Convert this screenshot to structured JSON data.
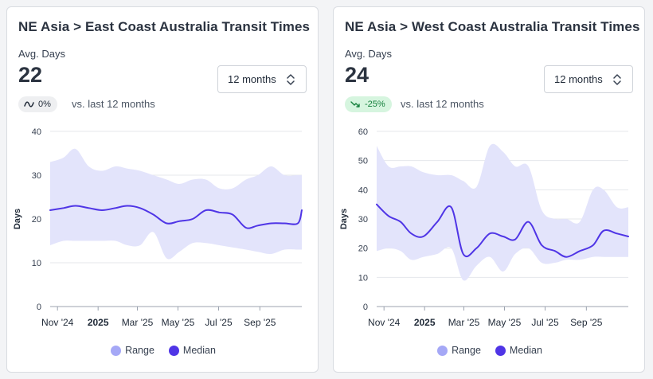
{
  "colors": {
    "range": "#a5a8f6",
    "range_fill": "#e3e4fb",
    "median": "#4f35e6",
    "grid": "#e5e7eb",
    "axis": "#9ca3af"
  },
  "panels": [
    {
      "title": "NE Asia > East Coast Australia Transit Times",
      "metric_label": "Avg. Days",
      "metric_value": "22",
      "period_select": "12 months",
      "change": {
        "value": "0%",
        "icon": "flat-wave-icon",
        "tone": "neutral"
      },
      "vs_text": "vs. last 12 months",
      "legend": {
        "range": "Range",
        "median": "Median"
      }
    },
    {
      "title": "NE Asia > West Coast Australia Transit Times",
      "metric_label": "Avg. Days",
      "metric_value": "24",
      "period_select": "12 months",
      "change": {
        "value": "-25%",
        "icon": "trend-down-icon",
        "tone": "down"
      },
      "vs_text": "vs. last 12 months",
      "legend": {
        "range": "Range",
        "median": "Median"
      }
    }
  ],
  "chart_data": [
    {
      "type": "area",
      "title": "NE Asia > East Coast Australia Transit Times",
      "ylabel": "Days",
      "ylim": [
        0,
        40
      ],
      "yticks": [
        0,
        10,
        20,
        30,
        40
      ],
      "xlim": [
        "2024-10-21",
        "2025-11-03"
      ],
      "xticks": [
        {
          "date": "2024-11-01",
          "label": "Nov '24"
        },
        {
          "date": "2025-01-01",
          "label": "2025",
          "bold": true
        },
        {
          "date": "2025-03-01",
          "label": "Mar '25"
        },
        {
          "date": "2025-05-01",
          "label": "May '25"
        },
        {
          "date": "2025-07-01",
          "label": "Jul '25"
        },
        {
          "date": "2025-09-01",
          "label": "Sep '25"
        }
      ],
      "grid": true,
      "legend_position": "bottom-center",
      "dates": [
        "2024-10-21",
        "2024-11-10",
        "2024-11-28",
        "2024-12-18",
        "2025-01-07",
        "2025-01-27",
        "2025-02-14",
        "2025-03-05",
        "2025-03-25",
        "2025-04-14",
        "2025-05-03",
        "2025-05-23",
        "2025-06-12",
        "2025-07-02",
        "2025-07-22",
        "2025-08-11",
        "2025-08-29",
        "2025-09-18",
        "2025-10-08",
        "2025-10-28",
        "2025-11-03"
      ],
      "series": [
        {
          "name": "Median",
          "values": [
            22,
            22.5,
            23,
            22.5,
            22,
            22.5,
            23,
            22.5,
            21,
            19,
            19.5,
            20,
            22,
            21.5,
            21,
            18,
            18.5,
            19,
            19,
            19,
            22
          ]
        },
        {
          "name": "Range",
          "upper": [
            33,
            34,
            36,
            32,
            31,
            32,
            31.5,
            31,
            30,
            29,
            28,
            29,
            29,
            27,
            27,
            29,
            30,
            32,
            30,
            30,
            30
          ],
          "lower": [
            14,
            15,
            15,
            15,
            15,
            15,
            14,
            14,
            17,
            11,
            12.5,
            14.5,
            14.5,
            14,
            13.5,
            13,
            12.5,
            12,
            13,
            13,
            13
          ]
        }
      ]
    },
    {
      "type": "area",
      "title": "NE Asia > West Coast Australia Transit Times",
      "ylabel": "Days",
      "ylim": [
        0,
        60
      ],
      "yticks": [
        0,
        10,
        20,
        30,
        40,
        50,
        60
      ],
      "xlim": [
        "2024-10-21",
        "2025-11-03"
      ],
      "xticks": [
        {
          "date": "2024-11-01",
          "label": "Nov '24"
        },
        {
          "date": "2025-01-01",
          "label": "2025",
          "bold": true
        },
        {
          "date": "2025-03-01",
          "label": "Mar '25"
        },
        {
          "date": "2025-05-01",
          "label": "May '25"
        },
        {
          "date": "2025-07-01",
          "label": "Jul '25"
        },
        {
          "date": "2025-09-01",
          "label": "Sep '25"
        }
      ],
      "grid": true,
      "legend_position": "bottom-center",
      "dates": [
        "2024-10-21",
        "2024-11-08",
        "2024-11-26",
        "2024-12-12",
        "2024-12-30",
        "2025-01-20",
        "2025-02-10",
        "2025-02-28",
        "2025-03-20",
        "2025-04-09",
        "2025-04-29",
        "2025-05-17",
        "2025-06-06",
        "2025-06-26",
        "2025-07-16",
        "2025-08-02",
        "2025-08-22",
        "2025-09-11",
        "2025-09-27",
        "2025-10-17",
        "2025-11-03"
      ],
      "series": [
        {
          "name": "Median",
          "values": [
            35,
            31,
            29,
            25,
            24,
            29,
            34,
            18,
            20,
            25,
            24,
            23,
            29,
            21,
            19,
            17,
            19,
            21,
            26,
            25,
            24
          ]
        },
        {
          "name": "Range",
          "upper": [
            55,
            48,
            48,
            48,
            46,
            45,
            45,
            43,
            41,
            55,
            53,
            48,
            48,
            33,
            30,
            30,
            29,
            40,
            40,
            34,
            34
          ],
          "lower": [
            19,
            20,
            19,
            16,
            17,
            18,
            20,
            9,
            14,
            17,
            12,
            18,
            20,
            15,
            15,
            16,
            16,
            17,
            17,
            17,
            17
          ]
        }
      ]
    }
  ]
}
